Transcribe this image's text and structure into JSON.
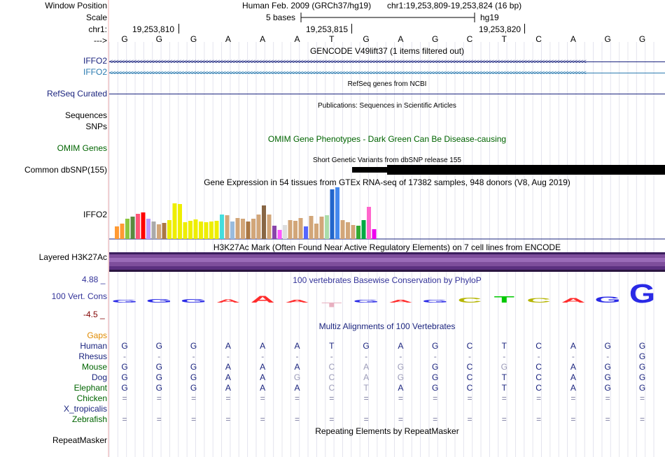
{
  "header": {
    "window_position_label": "Window Position",
    "scale_label": "Scale",
    "chrom_label": "chr1:",
    "arrow_label": "--->",
    "assembly": "Human Feb. 2009 (GRCh37/hg19)",
    "position": "chr1:19,253,809-19,253,824 (16 bp)",
    "scale_text": "5 bases",
    "db": "hg19",
    "ticks": [
      "19,253,810",
      "19,253,815",
      "19,253,820"
    ]
  },
  "sequence": [
    "G",
    "G",
    "G",
    "A",
    "A",
    "A",
    "T",
    "G",
    "A",
    "G",
    "C",
    "T",
    "C",
    "A",
    "G",
    "G"
  ],
  "tracks": {
    "gencode": {
      "title": "GENCODE V49lift37 (1 items filtered out)",
      "label1": "IFFO2",
      "label2": "IFFO2",
      "color1": "#1a237e",
      "color2": "#2b7bb0"
    },
    "refseq": {
      "title": "RefSeq genes from NCBI",
      "label": "RefSeq Curated"
    },
    "pubs": {
      "title": "Publications: Sequences in Scientific Articles",
      "label": "Sequences"
    },
    "snps": {
      "label": "SNPs"
    },
    "omim": {
      "title": "OMIM Gene Phenotypes - Dark Green Can Be Disease-causing",
      "label": "OMIM Genes",
      "color": "#006400"
    },
    "dbsnp": {
      "title": "Short Genetic Variants from dbSNP release 155",
      "label": "Common dbSNP(155)"
    },
    "gtex": {
      "title": "Gene Expression in 54 tissues from GTEx RNA-seq of 17382 samples, 948 donors (V8, Aug 2019)",
      "label": "IFFO2",
      "bars": [
        {
          "v": 18,
          "c": "#ff9a33"
        },
        {
          "v": 22,
          "c": "#ff9a33"
        },
        {
          "v": 29,
          "c": "#8cc63f"
        },
        {
          "v": 32,
          "c": "#5a8b3f"
        },
        {
          "v": 36,
          "c": "#ff5577"
        },
        {
          "v": 38,
          "c": "#ff0000"
        },
        {
          "v": 29,
          "c": "#bb99ff"
        },
        {
          "v": 25,
          "c": "#aaaaaa"
        },
        {
          "v": 21,
          "c": "#d2a679"
        },
        {
          "v": 23,
          "c": "#aa7744"
        },
        {
          "v": 27,
          "c": "#eeee00"
        },
        {
          "v": 51,
          "c": "#eeee00"
        },
        {
          "v": 50,
          "c": "#eeee00"
        },
        {
          "v": 24,
          "c": "#eeee00"
        },
        {
          "v": 26,
          "c": "#eeee00"
        },
        {
          "v": 28,
          "c": "#eeee00"
        },
        {
          "v": 25,
          "c": "#eeee00"
        },
        {
          "v": 24,
          "c": "#eeee00"
        },
        {
          "v": 25,
          "c": "#eeee00"
        },
        {
          "v": 26,
          "c": "#eeee00"
        },
        {
          "v": 35,
          "c": "#44dddd"
        },
        {
          "v": 34,
          "c": "#d2a679"
        },
        {
          "v": 25,
          "c": "#99bbdd"
        },
        {
          "v": 30,
          "c": "#d2a679"
        },
        {
          "v": 29,
          "c": "#d2a679"
        },
        {
          "v": 25,
          "c": "#aa7744"
        },
        {
          "v": 29,
          "c": "#d2a679"
        },
        {
          "v": 35,
          "c": "#d2a679"
        },
        {
          "v": 48,
          "c": "#886644"
        },
        {
          "v": 35,
          "c": "#d2a679"
        },
        {
          "v": 19,
          "c": "#8844aa"
        },
        {
          "v": 13,
          "c": "#ff55ff"
        },
        {
          "v": 20,
          "c": "#dddddd"
        },
        {
          "v": 27,
          "c": "#d2a679"
        },
        {
          "v": 26,
          "c": "#d2a679"
        },
        {
          "v": 30,
          "c": "#d2a679"
        },
        {
          "v": 18,
          "c": "#5566ff"
        },
        {
          "v": 33,
          "c": "#d2a679"
        },
        {
          "v": 22,
          "c": "#d2a679"
        },
        {
          "v": 32,
          "c": "#d2a679"
        },
        {
          "v": 34,
          "c": "#aaddaa"
        },
        {
          "v": 71,
          "c": "#2266cc"
        },
        {
          "v": 74,
          "c": "#4488ee"
        },
        {
          "v": 27,
          "c": "#d2a679"
        },
        {
          "v": 24,
          "c": "#d2a679"
        },
        {
          "v": 20,
          "c": "#d2a679"
        },
        {
          "v": 19,
          "c": "#33aa33"
        },
        {
          "v": 27,
          "c": "#00aa44"
        },
        {
          "v": 46,
          "c": "#ff66cc"
        },
        {
          "v": 14,
          "c": "#ee00ee"
        }
      ]
    },
    "h3k27ac": {
      "title": "H3K27Ac Mark (Often Found Near Active Regulatory Elements) on 7 cell lines from ENCODE",
      "label": "Layered H3K27Ac"
    },
    "cons": {
      "title": "100 vertebrates Basewise Conservation by PhyloP",
      "label": "100 Vert. Cons",
      "max": "4.88 _",
      "min": "-4.5 _",
      "scores": [
        0.35,
        0.75,
        0.75,
        0.6,
        1.4,
        0.25,
        -0.9,
        0.4,
        0.2,
        0,
        1.0,
        1.3,
        0.9,
        0.9,
        1.2,
        3.8
      ]
    },
    "multiz": {
      "title": "Multiz Alignments of 100 Vertebrates",
      "gaps_label": "Gaps",
      "species": [
        {
          "name": "Human",
          "color": "#1a237e",
          "bases": [
            "G",
            "G",
            "G",
            "A",
            "A",
            "A",
            "T",
            "G",
            "A",
            "G",
            "C",
            "T",
            "C",
            "A",
            "G",
            "G"
          ]
        },
        {
          "name": "Rhesus",
          "color": "#1a237e",
          "bases": [
            "-",
            "-",
            "-",
            "-",
            "-",
            "-",
            "-",
            "-",
            "-",
            "-",
            "-",
            "-",
            "-",
            "-",
            "-",
            "G"
          ]
        },
        {
          "name": "Mouse",
          "color": "#006400",
          "bases": [
            "G",
            "G",
            "G",
            "A",
            "A",
            "A",
            "C",
            "A",
            "G",
            "G",
            "C",
            "G",
            "C",
            "A",
            "G",
            "G"
          ]
        },
        {
          "name": "Dog",
          "color": "#1a237e",
          "bases": [
            "G",
            "G",
            "G",
            "A",
            "A",
            "G",
            "C",
            "A",
            "G",
            "G",
            "C",
            "T",
            "C",
            "A",
            "G",
            "G"
          ]
        },
        {
          "name": "Elephant",
          "color": "#006400",
          "bases": [
            "G",
            "G",
            "G",
            "A",
            "A",
            "A",
            "C",
            "T",
            "A",
            "G",
            "C",
            "T",
            "C",
            "A",
            "G",
            "G"
          ]
        },
        {
          "name": "Chicken",
          "color": "#006400",
          "bases": [
            "=",
            "=",
            "=",
            "=",
            "=",
            "=",
            "=",
            "=",
            "=",
            "=",
            "=",
            "=",
            "=",
            "=",
            "=",
            "="
          ]
        },
        {
          "name": "X_tropicalis",
          "color": "#1a237e",
          "bases": []
        },
        {
          "name": "Zebrafish",
          "color": "#006400",
          "bases": [
            "=",
            "=",
            "=",
            "=",
            "=",
            "=",
            "=",
            "=",
            "=",
            "=",
            "=",
            "=",
            "=",
            "=",
            "=",
            "="
          ]
        }
      ]
    },
    "rmsk": {
      "title": "Repeating Elements by RepeatMasker",
      "label": "RepeatMasker"
    }
  }
}
